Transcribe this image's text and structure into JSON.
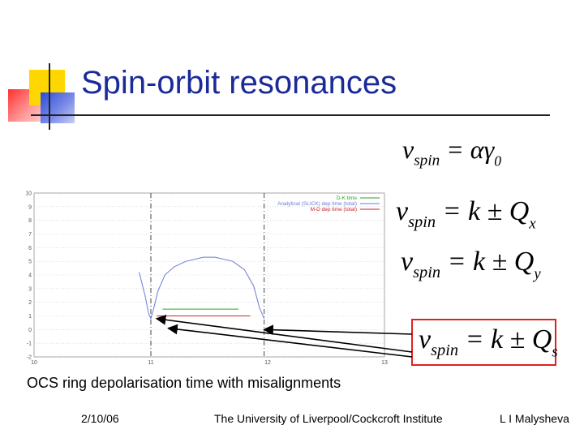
{
  "slide": {
    "title": "Spin-orbit resonances",
    "caption": "OCS ring depolarisation time with misalignments",
    "footer": {
      "date": "2/10/06",
      "institution": "The University of Liverpool/Cockcroft Institute",
      "author": "L I Malysheva"
    },
    "formulas": {
      "f1": {
        "nu": "ν",
        "sub": "spin",
        "rhs": " = αγ",
        "rhs_sub": "0"
      },
      "f2": {
        "nu": "ν",
        "sub": "spin",
        "rhs": " = k ± Q",
        "rhs_sub": "x"
      },
      "f3": {
        "nu": "ν",
        "sub": "spin",
        "rhs": " = k ± Q",
        "rhs_sub": "y"
      },
      "f4": {
        "nu": "ν",
        "sub": "spin",
        "rhs": " = k ± Q",
        "rhs_sub": "s"
      }
    },
    "colors": {
      "title": "#1a2a9a",
      "highlight_box": "#e02020"
    }
  },
  "chart_data": {
    "type": "line",
    "x_ticks": [
      "10",
      "11",
      "12",
      "13"
    ],
    "y_ticks": [
      "10",
      "9",
      "8",
      "7",
      "6",
      "5",
      "4",
      "3",
      "2",
      "1",
      "0",
      "-1",
      "-2"
    ],
    "xlim": [
      10,
      13
    ],
    "ylim": [
      -2,
      10
    ],
    "grid": true,
    "legend_position": "top-right",
    "series": [
      {
        "name": "D-K time",
        "color": "#22aa22",
        "segments": [
          [
            [
              11.1,
              1.5
            ],
            [
              11.75,
              1.5
            ]
          ]
        ]
      },
      {
        "name": "Analytical (SLICK) dep time (total)",
        "color": "#6a7ad8",
        "segments": [
          [
            [
              10.9,
              4.2
            ],
            [
              10.95,
              2.5
            ],
            [
              10.98,
              1.2
            ],
            [
              11.0,
              0.8
            ],
            [
              11.02,
              1.4
            ],
            [
              11.06,
              2.8
            ],
            [
              11.12,
              4.0
            ],
            [
              11.2,
              4.6
            ],
            [
              11.3,
              5.0
            ],
            [
              11.45,
              5.3
            ],
            [
              11.55,
              5.3
            ],
            [
              11.7,
              5.0
            ],
            [
              11.8,
              4.4
            ],
            [
              11.88,
              3.2
            ],
            [
              11.93,
              1.6
            ],
            [
              11.97,
              0.8
            ]
          ]
        ]
      },
      {
        "name": "M-D dep time (total)",
        "color": "#cc2222",
        "segments": [
          [
            [
              11.05,
              1.0
            ],
            [
              11.85,
              1.0
            ]
          ]
        ]
      }
    ],
    "resonance_markers": [
      11.0,
      11.97
    ]
  }
}
